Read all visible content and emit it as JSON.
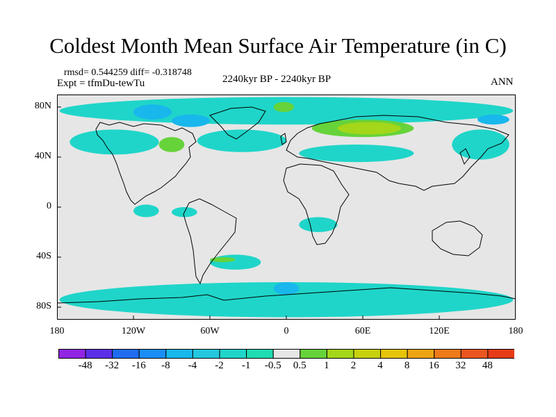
{
  "title": "Coldest Month Mean Surface Air Temperature (in C)",
  "stats_line": "rmsd= 0.544259  diff= -0.318748",
  "experiment_line": "Expt = tfmDu-tewTu",
  "period_label": "2240kyr BP - 2240kyr BP",
  "season_label": "ANN",
  "map": {
    "projection": "cylindrical-equidistant",
    "lon_range": [
      -180,
      180
    ],
    "lat_range": [
      -90,
      90
    ],
    "background_color": "#e6e6e6",
    "y_ticks": [
      {
        "lat": 80,
        "label": "80N"
      },
      {
        "lat": 40,
        "label": "40N"
      },
      {
        "lat": 0,
        "label": "0"
      },
      {
        "lat": -40,
        "label": "40S"
      },
      {
        "lat": -80,
        "label": "80S"
      }
    ],
    "x_ticks": [
      {
        "lon": -180,
        "label": "180"
      },
      {
        "lon": -120,
        "label": "120W"
      },
      {
        "lon": -60,
        "label": "60W"
      },
      {
        "lon": 0,
        "label": "0"
      },
      {
        "lon": 60,
        "label": "60E"
      },
      {
        "lon": 120,
        "label": "120E"
      },
      {
        "lon": 180,
        "label": "180"
      }
    ],
    "anomaly_regions": [
      {
        "level": "-1",
        "color": "#1fd5c9",
        "lon": [
          -178,
          178
        ],
        "lat": [
          66,
          88
        ]
      },
      {
        "level": "-1",
        "color": "#1fd5c9",
        "lon": [
          -178,
          178
        ],
        "lat": [
          -88,
          -60
        ]
      },
      {
        "level": "-1",
        "color": "#1fd5c9",
        "lon": [
          -170,
          -100
        ],
        "lat": [
          42,
          62
        ]
      },
      {
        "level": "-1",
        "color": "#1fd5c9",
        "lon": [
          -70,
          0
        ],
        "lat": [
          44,
          62
        ]
      },
      {
        "level": "-1",
        "color": "#1fd5c9",
        "lon": [
          10,
          100
        ],
        "lat": [
          36,
          50
        ]
      },
      {
        "level": "-1",
        "color": "#1fd5c9",
        "lon": [
          130,
          175
        ],
        "lat": [
          38,
          62
        ]
      },
      {
        "level": "-1",
        "color": "#1fd5c9",
        "lon": [
          -60,
          -20
        ],
        "lat": [
          -50,
          -38
        ]
      },
      {
        "level": "-1",
        "color": "#1fd5c9",
        "lon": [
          -120,
          -100
        ],
        "lat": [
          -8,
          2
        ]
      },
      {
        "level": "-1",
        "color": "#1fd5c9",
        "lon": [
          10,
          40
        ],
        "lat": [
          -20,
          -8
        ]
      },
      {
        "level": "-1",
        "color": "#1fd5c9",
        "lon": [
          -90,
          -70
        ],
        "lat": [
          -8,
          0
        ]
      },
      {
        "level": "-2",
        "color": "#18b7ec",
        "lon": [
          -120,
          -90
        ],
        "lat": [
          70,
          82
        ]
      },
      {
        "level": "-2",
        "color": "#18b7ec",
        "lon": [
          -90,
          -60
        ],
        "lat": [
          64,
          74
        ]
      },
      {
        "level": "-2",
        "color": "#18b7ec",
        "lon": [
          150,
          175
        ],
        "lat": [
          66,
          74
        ]
      },
      {
        "level": "-2",
        "color": "#18b7ec",
        "lon": [
          -10,
          10
        ],
        "lat": [
          -70,
          -60
        ]
      },
      {
        "level": "1",
        "color": "#66d33a",
        "lon": [
          20,
          100
        ],
        "lat": [
          56,
          70
        ]
      },
      {
        "level": "1",
        "color": "#66d33a",
        "lon": [
          -100,
          -80
        ],
        "lat": [
          44,
          56
        ]
      },
      {
        "level": "1",
        "color": "#66d33a",
        "lon": [
          -60,
          -40
        ],
        "lat": [
          -44,
          -40
        ]
      },
      {
        "level": "1",
        "color": "#66d33a",
        "lon": [
          -10,
          6
        ],
        "lat": [
          76,
          84
        ]
      },
      {
        "level": "2",
        "color": "#a4d619",
        "lon": [
          40,
          90
        ],
        "lat": [
          58,
          68
        ]
      }
    ]
  },
  "colorbar": {
    "colors": [
      "#9125e3",
      "#5c2ee8",
      "#1f6cf0",
      "#1a8ef5",
      "#18b7ec",
      "#23c8de",
      "#1fd5c9",
      "#20dcb2",
      "#e6e6e6",
      "#66d33a",
      "#a4d619",
      "#c7d10e",
      "#e5c40a",
      "#eda413",
      "#ee7a1a",
      "#ea561f",
      "#e63b16"
    ],
    "labels": [
      "-48",
      "-32",
      "-16",
      "-8",
      "-4",
      "-2",
      "-1",
      "-0.5",
      "0.5",
      "1",
      "2",
      "4",
      "8",
      "16",
      "32",
      "48"
    ]
  }
}
